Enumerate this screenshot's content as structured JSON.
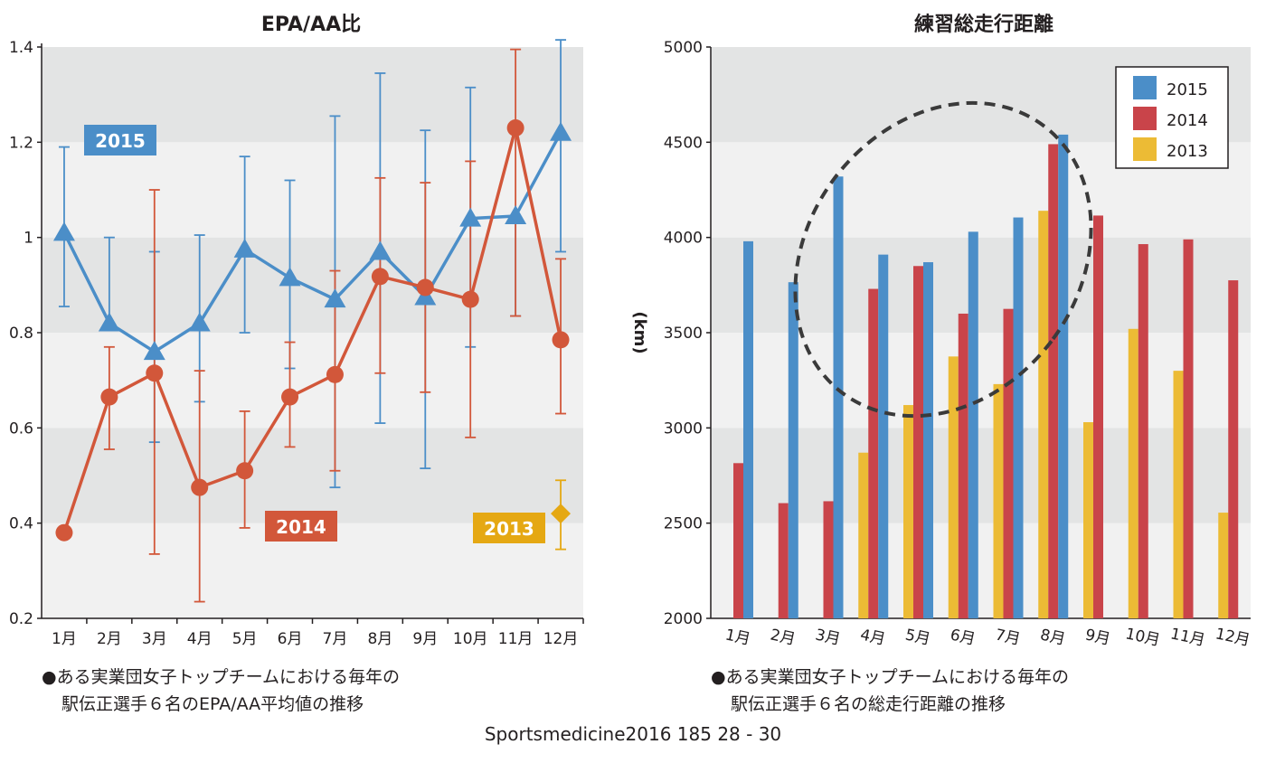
{
  "chart_data": [
    {
      "type": "line",
      "title": "EPA/AA比",
      "categories": [
        "1月",
        "2月",
        "3月",
        "4月",
        "5月",
        "6月",
        "7月",
        "8月",
        "9月",
        "10月",
        "11月",
        "12月"
      ],
      "ylim": [
        0.2,
        1.4
      ],
      "yticks": [
        "0.2",
        "0.4",
        "0.6",
        "0.8",
        "1",
        "1.2",
        "1.4"
      ],
      "ytick_values": [
        0.2,
        0.4,
        0.6,
        0.8,
        1.0,
        1.2,
        1.4
      ],
      "series": [
        {
          "name": "2015",
          "color": "#4b8ec8",
          "marker": "triangle",
          "values": [
            1.01,
            0.82,
            0.76,
            0.82,
            0.975,
            0.915,
            0.87,
            0.97,
            0.875,
            1.04,
            1.045,
            1.22
          ],
          "err_low": [
            0.855,
            null,
            0.57,
            0.655,
            0.8,
            0.725,
            0.475,
            0.61,
            0.515,
            0.77,
            0.835,
            0.97
          ],
          "err_high": [
            1.19,
            1.0,
            0.97,
            1.005,
            1.17,
            1.12,
            1.255,
            1.345,
            1.225,
            1.315,
            null,
            1.415
          ]
        },
        {
          "name": "2014",
          "color": "#d2573a",
          "marker": "circle",
          "values": [
            0.38,
            0.665,
            0.715,
            0.475,
            0.51,
            0.665,
            0.712,
            0.918,
            0.895,
            0.87,
            1.23,
            0.785
          ],
          "err_low": [
            null,
            0.555,
            0.335,
            0.235,
            0.39,
            0.56,
            0.51,
            0.715,
            0.675,
            0.58,
            0.835,
            0.63
          ],
          "err_high": [
            null,
            0.77,
            1.1,
            0.72,
            0.635,
            0.78,
            0.93,
            1.125,
            1.115,
            1.16,
            1.395,
            0.955
          ]
        },
        {
          "name": "2013",
          "color": "#e5a813",
          "marker": "diamond",
          "values": [
            null,
            null,
            null,
            null,
            null,
            null,
            null,
            null,
            null,
            null,
            null,
            0.42
          ],
          "err_low": [
            null,
            null,
            null,
            null,
            null,
            null,
            null,
            null,
            null,
            null,
            null,
            0.345
          ],
          "err_high": [
            null,
            null,
            null,
            null,
            null,
            null,
            null,
            null,
            null,
            null,
            null,
            0.49
          ]
        }
      ],
      "labels": {
        "s2015": "2015",
        "s2014": "2014",
        "s2013": "2013"
      }
    },
    {
      "type": "bar",
      "title": "練習総走行距離",
      "ylabel": "(km)",
      "categories": [
        "1月",
        "2月",
        "3月",
        "4月",
        "5月",
        "6月",
        "7月",
        "8月",
        "9月",
        "10月",
        "11月",
        "12月"
      ],
      "ylim": [
        2000,
        5000
      ],
      "yticks": [
        "2000",
        "2500",
        "3000",
        "3500",
        "4000",
        "4500",
        "5000"
      ],
      "ytick_values": [
        2000,
        2500,
        3000,
        3500,
        4000,
        4500,
        5000
      ],
      "series": [
        {
          "name": "2013",
          "color": "#ecbb35",
          "values": [
            null,
            null,
            null,
            2870,
            3120,
            3375,
            3230,
            4140,
            3030,
            3520,
            3300,
            2555
          ]
        },
        {
          "name": "2014",
          "color": "#c9444a",
          "values": [
            2815,
            2605,
            2615,
            3730,
            3850,
            3600,
            3625,
            4490,
            4115,
            3965,
            3990,
            3775
          ]
        },
        {
          "name": "2015",
          "color": "#4b8ec8",
          "values": [
            3980,
            3765,
            4320,
            3910,
            3870,
            4030,
            4105,
            4540,
            null,
            null,
            null,
            null
          ]
        }
      ],
      "legend": [
        "2015",
        "2014",
        "2013"
      ],
      "legend_colors": [
        "#4b8ec8",
        "#c9444a",
        "#ecbb35"
      ]
    }
  ],
  "captions": {
    "left_line1": "●ある実業団女子トップチームにおける毎年の",
    "left_line2": "駅伝正選手６名のEPA/AA平均値の推移",
    "right_line1": "●ある実業団女子トップチームにおける毎年の",
    "right_line2": "駅伝正選手６名の総走行距離の推移"
  },
  "footer": "Sportsmedicine2016 185 28 - 30",
  "colors": {
    "band_dark": "#e3e4e4",
    "band_light": "#f1f1f1",
    "ellipse": "#3a3a3a"
  }
}
